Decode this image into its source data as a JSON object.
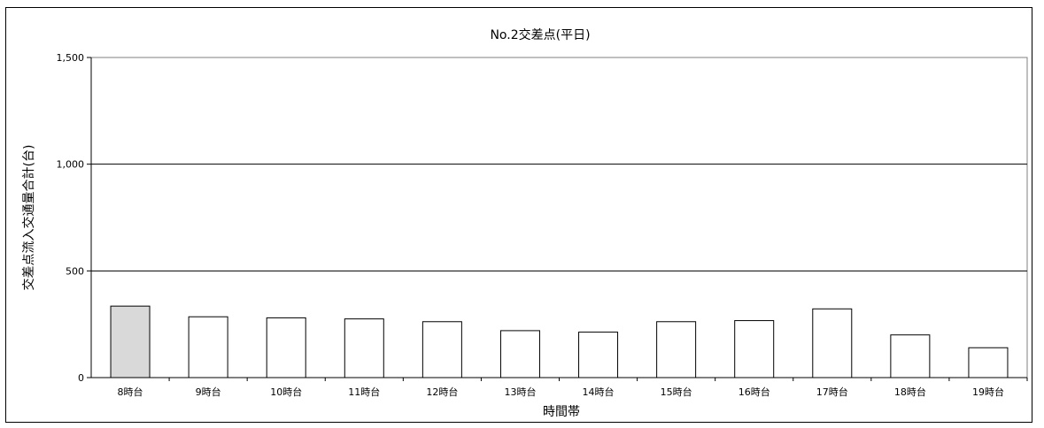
{
  "chart_data": {
    "type": "bar",
    "title": "No.2交差点(平日)",
    "xlabel": "時間帯",
    "ylabel": "交差点流入交通量合計(台)",
    "categories": [
      "8時台",
      "9時台",
      "10時台",
      "11時台",
      "12時台",
      "13時台",
      "14時台",
      "15時台",
      "16時台",
      "17時台",
      "18時台",
      "19時台"
    ],
    "values": [
      335,
      285,
      280,
      275,
      262,
      220,
      213,
      262,
      267,
      322,
      200,
      140
    ],
    "highlight_index": 0,
    "ylim": [
      0,
      1500
    ],
    "yticks": [
      0,
      500,
      1000,
      1500
    ],
    "ytick_labels": [
      "0",
      "500",
      "1,000",
      "1,500"
    ],
    "grid": "horizontal major lines",
    "colors": {
      "bar_fill": "#ffffff",
      "bar_highlight_fill": "#d9d9d9",
      "bar_stroke": "#000000",
      "grid": "#000000",
      "axis": "#000000"
    }
  }
}
